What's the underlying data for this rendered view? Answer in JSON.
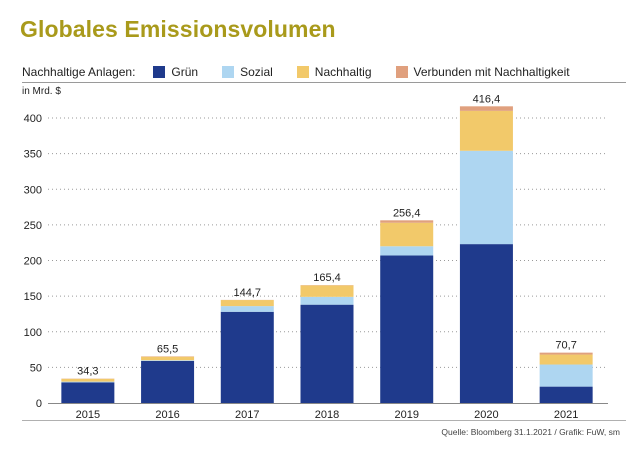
{
  "chart_data": {
    "type": "bar",
    "stacked": true,
    "title": "Globales Emissionsvolumen",
    "legend_title": "Nachhaltige Anlagen:",
    "unit_label": "in Mrd. $",
    "xlabel": "",
    "ylabel": "in Mrd. $",
    "ylim": [
      0,
      400
    ],
    "yticks": [
      0,
      50,
      100,
      150,
      200,
      250,
      300,
      350,
      400
    ],
    "ytick_labels": [
      "0",
      "50",
      "100",
      "150",
      "200",
      "250",
      "300",
      "350",
      "400"
    ],
    "grid": true,
    "legend_position": "top",
    "categories": [
      "2015",
      "2016",
      "2017",
      "2018",
      "2019",
      "2020",
      "2021"
    ],
    "series": [
      {
        "name": "Grün",
        "color": "#1f3a8c",
        "values": [
          29,
          59,
          128,
          138,
          207,
          223,
          23
        ]
      },
      {
        "name": "Sozial",
        "color": "#aed6f1",
        "values": [
          1,
          1,
          8,
          11,
          13,
          131,
          31
        ]
      },
      {
        "name": "Nachhaltig",
        "color": "#f2c96a",
        "values": [
          4,
          5,
          8.5,
          16,
          33,
          56,
          14
        ]
      },
      {
        "name": "Verbunden mit Nachhaltigkeit",
        "color": "#e0a07e",
        "values": [
          0.3,
          0.5,
          0.2,
          0.4,
          3.4,
          6.4,
          2.7
        ]
      }
    ],
    "totals": [
      34.3,
      65.5,
      144.7,
      165.4,
      256.4,
      416.4,
      70.7
    ],
    "total_labels": [
      "34,3",
      "65,5",
      "144,7",
      "165,4",
      "256,4",
      "416,4",
      "70,7"
    ],
    "source": "Quelle: Bloomberg 31.1.2021 / Grafik: FuW, sm"
  }
}
